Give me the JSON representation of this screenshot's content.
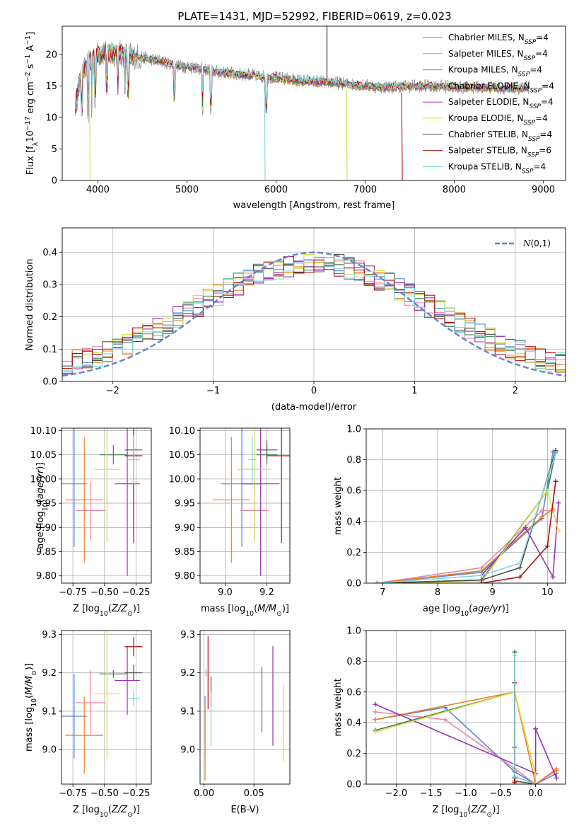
{
  "figure_title": "PLATE=1431, MJD=52992, FIBERID=0619, z=0.023",
  "colors": {
    "Chabrier MILES": "#5b84d6",
    "Salpeter MILES": "#e58aa8",
    "Kroupa MILES": "#b8860b",
    "Chabrier ELODIE": "#3f7f4f",
    "Salpeter ELODIE": "#9b30b0",
    "Kroupa ELODIE": "#d6dc4a",
    "Chabrier STELIB": "#4f4f4f",
    "Salpeter STELIB": "#b01010",
    "Kroupa STELIB": "#7ed6dc",
    "orange": "#f07f1e",
    "salmon": "#f08080"
  },
  "chart_data": [
    {
      "id": "spectrum",
      "type": "line",
      "title": "PLATE=1431, MJD=52992, FIBERID=0619, z=0.023",
      "xlabel": "wavelength [Angstrom, rest frame]",
      "ylabel": "Flux [f_λ10^-17 erg cm^-2 s^-1 A^-1]",
      "xlim": [
        3600,
        9250
      ],
      "ylim": [
        0,
        24.5
      ],
      "xticks": [
        4000,
        5000,
        6000,
        7000,
        8000,
        9000
      ],
      "yticks": [
        0,
        5,
        10,
        15,
        20
      ],
      "grid": false,
      "legend": "top-right",
      "legend_entries": [
        {
          "model": "Chabrier MILES",
          "suffix": "4"
        },
        {
          "model": "Salpeter MILES",
          "suffix": "4"
        },
        {
          "model": "Kroupa MILES",
          "suffix": "4"
        },
        {
          "model": "Chabrier ELODIE",
          "suffix": "4"
        },
        {
          "model": "Salpeter ELODIE",
          "suffix": "4"
        },
        {
          "model": "Kroupa ELODIE",
          "suffix": "4"
        },
        {
          "model": "Chabrier STELIB",
          "suffix": "4"
        },
        {
          "model": "Salpeter STELIB",
          "suffix": "6"
        },
        {
          "model": "Kroupa STELIB",
          "suffix": "4"
        }
      ],
      "legend_prefix": "N",
      "legend_sub": "SSP",
      "continuum": [
        [
          3750,
          12
        ],
        [
          3800,
          16
        ],
        [
          3900,
          19
        ],
        [
          4000,
          20
        ],
        [
          4100,
          20.5
        ],
        [
          4300,
          20
        ],
        [
          4500,
          19.5
        ],
        [
          4700,
          19
        ],
        [
          4900,
          18.2
        ],
        [
          5100,
          18
        ],
        [
          5300,
          17.3
        ],
        [
          5500,
          17
        ],
        [
          5800,
          16.6
        ],
        [
          6000,
          16.3
        ],
        [
          6300,
          15.8
        ],
        [
          6600,
          15.6
        ],
        [
          6900,
          15.2
        ],
        [
          7200,
          14.8
        ],
        [
          7500,
          15
        ],
        [
          7800,
          15
        ],
        [
          8100,
          14.8
        ],
        [
          8400,
          14.8
        ],
        [
          8700,
          14.6
        ],
        [
          8850,
          14.8
        ]
      ],
      "drops": [
        {
          "x": 3905,
          "y_to": 0,
          "model": "Kroupa ELODIE"
        },
        {
          "x": 5870,
          "y_to": 0,
          "model": "Kroupa STELIB"
        },
        {
          "x": 6790,
          "y_to": 0,
          "model": "Kroupa ELODIE"
        },
        {
          "x": 7410,
          "y_to": 0,
          "model": "Salpeter STELIB"
        }
      ],
      "spike": {
        "x": 6565,
        "y_to": 24.5
      }
    },
    {
      "id": "residuals",
      "type": "histogram",
      "xlabel": "(data-model)/error",
      "ylabel": "Normed distribution",
      "xlim": [
        -2.5,
        2.5
      ],
      "ylim": [
        0,
        0.475
      ],
      "xticks": [
        -2,
        -1,
        0,
        1,
        2
      ],
      "yticks": [
        0.0,
        0.1,
        0.2,
        0.3,
        0.4
      ],
      "grid": true,
      "legend": "top-right",
      "legend_label": "N(0,1)",
      "reference_curve": {
        "name": "N(0,1)",
        "mean": 0,
        "sigma": 1,
        "color": "#5b84d6"
      },
      "bin_width": 0.1,
      "bin_start": -2.5
    },
    {
      "id": "age-vs-Z",
      "type": "errorbar",
      "xlabel": "Z [log10(Z/Z⊙)]",
      "ylabel": "age  [log10(age/yr)]",
      "xlim": [
        -0.84,
        -0.13
      ],
      "ylim": [
        9.785,
        10.105
      ],
      "xticks": [
        -0.75,
        -0.5,
        -0.25
      ],
      "yticks": [
        9.8,
        9.85,
        9.9,
        9.95,
        10.0,
        10.05,
        10.1
      ],
      "grid": true,
      "points": [
        {
          "model": "Chabrier MILES",
          "x": -0.74,
          "xerr": 0.1,
          "y": 9.99,
          "yerr": 0.13
        },
        {
          "model": "Salpeter MILES",
          "x": -0.61,
          "xerr": 0.12,
          "y": 9.935,
          "yerr": 0.06
        },
        {
          "model": "orange",
          "x": -0.66,
          "xerr": 0.15,
          "y": 9.957,
          "yerr": 0.13
        },
        {
          "model": "Chabrier ELODIE",
          "x": -0.43,
          "xerr": 0.11,
          "y": 10.05,
          "yerr": 0.02
        },
        {
          "model": "Salpeter ELODIE",
          "x": -0.32,
          "xerr": 0.1,
          "y": 9.99,
          "yerr": 0.19
        },
        {
          "model": "Kroupa ELODIE",
          "x": -0.48,
          "xerr": 0.1,
          "y": 10.02,
          "yerr": 0.15
        },
        {
          "model": "Chabrier STELIB",
          "x": -0.27,
          "xerr": 0.07,
          "y": 10.06,
          "yerr": 0.02
        },
        {
          "model": "Salpeter STELIB",
          "x": -0.27,
          "xerr": 0.07,
          "y": 10.048,
          "yerr": 0.18
        },
        {
          "model": "Kroupa STELIB",
          "x": -0.27,
          "xerr": 0.05,
          "y": 10.04,
          "yerr": 0.05
        }
      ]
    },
    {
      "id": "age-vs-mass",
      "type": "errorbar",
      "xlabel": "mass [log10(M/M⊙)]",
      "ylabel": "",
      "xlim": [
        8.88,
        9.31
      ],
      "ylim": [
        9.785,
        10.105
      ],
      "xticks": [
        9.0,
        9.2
      ],
      "yticks": [
        9.8,
        9.85,
        9.9,
        9.95,
        10.0,
        10.05,
        10.1
      ],
      "grid": true,
      "points": [
        {
          "model": "Chabrier MILES",
          "x": 9.08,
          "xerr": 0.1,
          "y": 9.99,
          "yerr": 0.13
        },
        {
          "model": "Salpeter MILES",
          "x": 9.14,
          "xerr": 0.07,
          "y": 9.935,
          "yerr": 0.06
        },
        {
          "model": "orange",
          "x": 9.03,
          "xerr": 0.09,
          "y": 9.957,
          "yerr": 0.13
        },
        {
          "model": "Chabrier ELODIE",
          "x": 9.2,
          "xerr": 0.05,
          "y": 10.05,
          "yerr": 0.02
        },
        {
          "model": "Salpeter ELODIE",
          "x": 9.17,
          "xerr": 0.09,
          "y": 9.99,
          "yerr": 0.19
        },
        {
          "model": "Kroupa ELODIE",
          "x": 9.14,
          "xerr": 0.08,
          "y": 10.02,
          "yerr": 0.15
        },
        {
          "model": "Chabrier STELIB",
          "x": 9.2,
          "xerr": 0.05,
          "y": 10.06,
          "yerr": 0.02
        },
        {
          "model": "Salpeter STELIB",
          "x": 9.27,
          "xerr": 0.07,
          "y": 10.048,
          "yerr": 0.18
        },
        {
          "model": "Kroupa STELIB",
          "x": 9.13,
          "xerr": 0.02,
          "y": 10.04,
          "yerr": 0.05
        }
      ]
    },
    {
      "id": "mass-weight-vs-age",
      "type": "line",
      "xlabel": "age  [log10(age/yr)]",
      "ylabel": "mass weight",
      "xlim": [
        6.7,
        10.33
      ],
      "ylim": [
        0,
        1.0
      ],
      "xticks": [
        7,
        8,
        9,
        10
      ],
      "yticks": [
        0.0,
        0.2,
        0.4,
        0.6,
        0.8,
        1.0
      ],
      "grid": true,
      "series": [
        {
          "model": "Chabrier MILES",
          "x": [
            6.9,
            8.8,
            9.9,
            10.1
          ],
          "y": [
            0.0,
            0.07,
            0.42,
            0.85
          ]
        },
        {
          "model": "Salpeter MILES",
          "x": [
            6.9,
            8.8,
            9.9,
            10.1
          ],
          "y": [
            0.0,
            0.1,
            0.47,
            0.47
          ]
        },
        {
          "model": "orange",
          "x": [
            6.9,
            8.8,
            9.9,
            10.1
          ],
          "y": [
            0.0,
            0.08,
            0.43,
            0.48
          ]
        },
        {
          "model": "Chabrier ELODIE",
          "x": [
            6.9,
            8.8,
            10.0,
            10.15
          ],
          "y": [
            0.0,
            0.02,
            0.6,
            0.85
          ]
        },
        {
          "model": "Salpeter ELODIE",
          "x": [
            8.8,
            9.6,
            10.1,
            10.2
          ],
          "y": [
            0.05,
            0.36,
            0.04,
            0.52
          ]
        },
        {
          "model": "Kroupa ELODIE",
          "x": [
            6.9,
            8.8,
            10.0,
            10.2
          ],
          "y": [
            0.0,
            0.01,
            0.6,
            0.34
          ]
        },
        {
          "model": "Chabrier STELIB",
          "x": [
            6.9,
            8.8,
            9.5,
            10.15
          ],
          "y": [
            0.0,
            0.02,
            0.1,
            0.86
          ]
        },
        {
          "model": "Salpeter STELIB",
          "x": [
            8.8,
            9.5,
            10.0,
            10.15
          ],
          "y": [
            0.0,
            0.04,
            0.24,
            0.66
          ]
        },
        {
          "model": "Kroupa STELIB",
          "x": [
            6.9,
            8.8,
            9.5,
            10.15
          ],
          "y": [
            0.0,
            0.05,
            0.13,
            0.84
          ]
        }
      ]
    },
    {
      "id": "mass-vs-Z",
      "type": "errorbar",
      "xlabel": "Z [log10(Z/Z⊙)]",
      "ylabel": "mass [log10(M/M⊙)]",
      "xlim": [
        -0.84,
        -0.13
      ],
      "ylim": [
        8.91,
        9.31
      ],
      "xticks": [
        -0.75,
        -0.5,
        -0.25
      ],
      "yticks": [
        9.0,
        9.1,
        9.2,
        9.3
      ],
      "grid": true,
      "points": [
        {
          "model": "Chabrier MILES",
          "x": -0.74,
          "xerr": 0.1,
          "y": 9.087,
          "yerr": 0.11
        },
        {
          "model": "Salpeter MILES",
          "x": -0.61,
          "xerr": 0.12,
          "y": 9.122,
          "yerr": 0.085
        },
        {
          "model": "orange",
          "x": -0.66,
          "xerr": 0.15,
          "y": 9.037,
          "yerr": 0.1
        },
        {
          "model": "Chabrier ELODIE",
          "x": -0.43,
          "xerr": 0.11,
          "y": 9.197,
          "yerr": 0.01
        },
        {
          "model": "Salpeter ELODIE",
          "x": -0.32,
          "xerr": 0.1,
          "y": 9.18,
          "yerr": 0.09
        },
        {
          "model": "Kroupa ELODIE",
          "x": -0.48,
          "xerr": 0.1,
          "y": 9.145,
          "yerr": 0.17
        },
        {
          "model": "Chabrier STELIB",
          "x": -0.27,
          "xerr": 0.07,
          "y": 9.2,
          "yerr": 0.02
        },
        {
          "model": "Salpeter STELIB",
          "x": -0.27,
          "xerr": 0.07,
          "y": 9.268,
          "yerr": 0.025
        },
        {
          "model": "Kroupa STELIB",
          "x": -0.27,
          "xerr": 0.05,
          "y": 9.133,
          "yerr": 0.02
        }
      ]
    },
    {
      "id": "mass-vs-ebv",
      "type": "errorbar",
      "xlabel": "E(B-V)",
      "ylabel": "",
      "xlim": [
        -0.004,
        0.086
      ],
      "ylim": [
        8.91,
        9.31
      ],
      "xticks": [
        0.0,
        0.05
      ],
      "yticks": [
        9.0,
        9.1,
        9.2,
        9.3
      ],
      "grid": true,
      "points": [
        {
          "model": "Chabrier MILES",
          "x": 0.001,
          "xerr": 0,
          "y": 9.06,
          "yerr": 0.08
        },
        {
          "model": "orange",
          "x": 0.001,
          "xerr": 0,
          "y": 9.02,
          "yerr": 0.1
        },
        {
          "model": "Salpeter MILES",
          "x": 0.002,
          "xerr": 0,
          "y": 9.2,
          "yerr": 0.01
        },
        {
          "model": "Salpeter STELIB",
          "x": 0.004,
          "xerr": 0,
          "y": 9.2,
          "yerr": 0.095
        },
        {
          "model": "Chabrier STELIB",
          "x": 0.007,
          "xerr": 0,
          "y": 9.15,
          "yerr": 0.04
        },
        {
          "model": "Kroupa STELIB",
          "x": 0.007,
          "xerr": 0,
          "y": 9.08,
          "yerr": 0.07
        },
        {
          "model": "Chabrier ELODIE",
          "x": 0.058,
          "xerr": 0,
          "y": 9.13,
          "yerr": 0.085
        },
        {
          "model": "Salpeter ELODIE",
          "x": 0.069,
          "xerr": 0,
          "y": 9.14,
          "yerr": 0.13
        },
        {
          "model": "Kroupa ELODIE",
          "x": 0.08,
          "xerr": 0,
          "y": 9.07,
          "yerr": 0.1
        }
      ]
    },
    {
      "id": "mass-weight-vs-Z",
      "type": "line",
      "xlabel": "Z [log10(Z/Z⊙)]",
      "ylabel": "mass weight",
      "xlim": [
        -2.43,
        0.43
      ],
      "ylim": [
        0,
        1.0
      ],
      "xticks": [
        -2.0,
        -1.5,
        -1.0,
        -0.5,
        0.0
      ],
      "yticks": [
        0.0,
        0.2,
        0.4,
        0.6,
        0.8,
        1.0
      ],
      "grid": true,
      "series": [
        {
          "model": "Chabrier MILES",
          "x": [
            -2.3,
            -1.3,
            -0.3,
            0.0,
            0.3
          ],
          "y": [
            0.42,
            0.5,
            0.08,
            0.0,
            0.07
          ]
        },
        {
          "model": "Salpeter MILES",
          "x": [
            -2.3,
            -1.3,
            -0.3,
            0.0,
            0.3
          ],
          "y": [
            0.47,
            0.42,
            0.1,
            0.0,
            0.1
          ]
        },
        {
          "model": "orange",
          "x": [
            -2.3,
            -0.3,
            0.0,
            0.3
          ],
          "y": [
            0.42,
            0.6,
            0.0,
            0.09
          ]
        },
        {
          "model": "Chabrier ELODIE",
          "x": [
            -2.3,
            -0.3,
            -0.3,
            0.0
          ],
          "y": [
            0.35,
            0.6,
            0.05,
            0.0
          ]
        },
        {
          "model": "Salpeter ELODIE",
          "x": [
            -2.3,
            0.0,
            0.0,
            0.3
          ],
          "y": [
            0.52,
            0.07,
            0.36,
            0.04
          ]
        },
        {
          "model": "Kroupa ELODIE",
          "x": [
            -2.3,
            -0.3,
            0.0
          ],
          "y": [
            0.34,
            0.6,
            0.06
          ]
        },
        {
          "model": "Chabrier STELIB",
          "x": [
            -0.3,
            -0.3,
            -0.3,
            0.0
          ],
          "y": [
            0.86,
            0.24,
            0.02,
            0.0
          ]
        },
        {
          "model": "Salpeter STELIB",
          "x": [
            -0.3,
            -0.3,
            -0.3
          ],
          "y": [
            0.66,
            0.04,
            0.01
          ]
        },
        {
          "model": "Kroupa STELIB",
          "x": [
            -0.3,
            -0.3,
            -0.3,
            0.0
          ],
          "y": [
            0.84,
            0.13,
            0.05,
            0.0
          ]
        }
      ]
    }
  ]
}
